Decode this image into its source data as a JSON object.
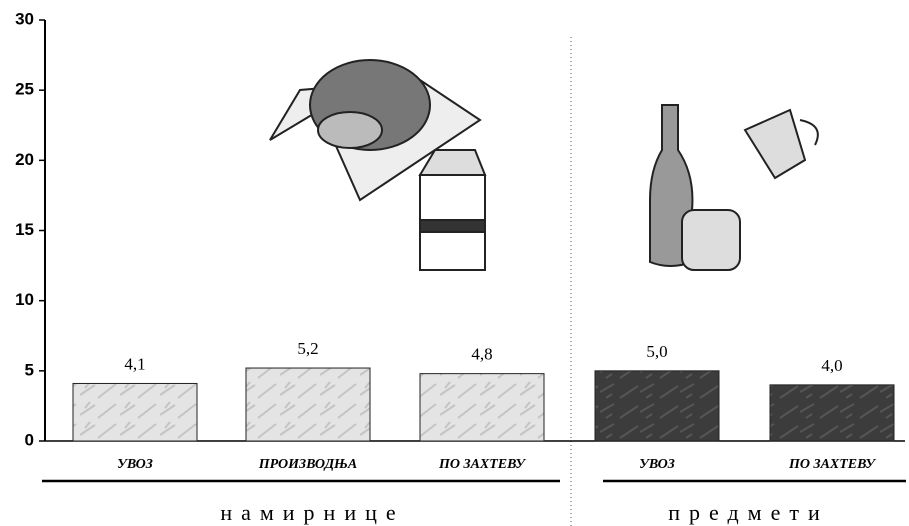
{
  "chart_data": {
    "type": "bar",
    "categories": [
      "УВОЗ",
      "ПРОИЗВОДЊА",
      "ПО ЗАХТЕВУ",
      "УВОЗ",
      "ПО ЗАХТЕВУ"
    ],
    "values": [
      4.1,
      5.2,
      4.8,
      5.0,
      4.0
    ],
    "value_labels": [
      "4,1",
      "5,2",
      "4,8",
      "5,0",
      "4,0"
    ],
    "colors": [
      "#dcdcdc",
      "#dcdcdc",
      "#dcdcdc",
      "#3a3a3a",
      "#3a3a3a"
    ],
    "groups": [
      "намирнице",
      "предмети"
    ],
    "ylim": [
      0,
      30
    ],
    "yticks": [
      0,
      5,
      10,
      15,
      20,
      25,
      30
    ],
    "grid": false
  }
}
